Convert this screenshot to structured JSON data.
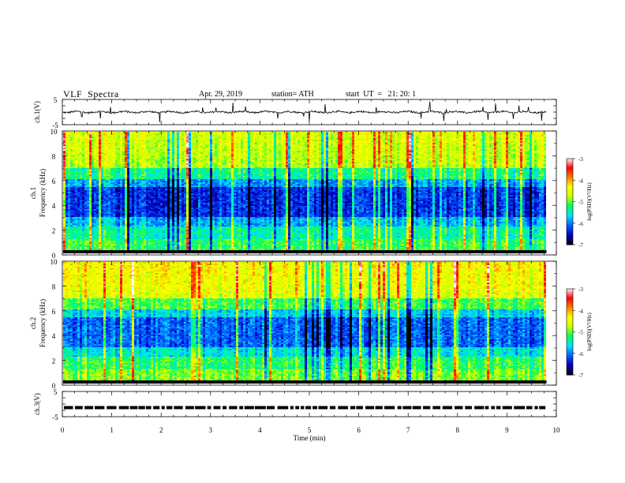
{
  "header": {
    "title": "VLF  Spectra",
    "date": "Apr. 29, 2019",
    "station": "station= ATH",
    "start": "start  UT  =   21: 20: 1"
  },
  "chart_data": [
    {
      "type": "line",
      "panel": "ch1-waveform",
      "ylabel": "ch.1(V)",
      "ylim": [
        -5,
        5
      ],
      "ytick_labels": [
        "5",
        "-5"
      ],
      "trace_color": "#000000",
      "x_extent_min": [
        0,
        9.8
      ]
    },
    {
      "type": "heatmap",
      "panel": "ch1-spectrogram",
      "ylabel": "Frequency (kHz)",
      "channel_label": "ch.1",
      "ylim": [
        0,
        10
      ],
      "ytick_labels": [
        "0",
        "2",
        "4",
        "6",
        "8",
        "10"
      ],
      "x_extent_min": [
        0,
        9.8
      ],
      "colorbar": {
        "label": "log(PSD)(V²/Hz)",
        "range": [
          -7,
          -3
        ],
        "tick_labels": [
          "-3",
          "-4",
          "-5",
          "-6",
          "-7"
        ],
        "colormap": [
          "#000000",
          "#0000c8",
          "#0060ff",
          "#00e0ff",
          "#00ff60",
          "#c8ff00",
          "#ffff00",
          "#ff8000",
          "#ff0000",
          "#ffffff"
        ]
      }
    },
    {
      "type": "heatmap",
      "panel": "ch2-spectrogram",
      "ylabel": "Frequency (kHz)",
      "channel_label": "ch.2",
      "ylim": [
        0,
        10
      ],
      "ytick_labels": [
        "0",
        "2",
        "4",
        "6",
        "8",
        "10"
      ],
      "x_extent_min": [
        0,
        9.8
      ],
      "colorbar": {
        "label": "log(PSD)(V²/Hz)",
        "range": [
          -7,
          -3
        ],
        "tick_labels": [
          "-3",
          "-4",
          "-5",
          "-6",
          "-7"
        ],
        "colormap": [
          "#000000",
          "#0000c8",
          "#0060ff",
          "#00e0ff",
          "#00ff60",
          "#c8ff00",
          "#ffff00",
          "#ff8000",
          "#ff0000",
          "#ffffff"
        ]
      }
    },
    {
      "type": "line",
      "panel": "ch3-waveform",
      "ylabel": "ch.3(V)",
      "ylim": [
        -5,
        5
      ],
      "ytick_labels": [
        "5",
        "-5"
      ],
      "trace_color": "#000000",
      "x_extent_min": [
        0,
        9.8
      ]
    }
  ],
  "xaxis": {
    "label": "Time  (min)",
    "range": [
      0,
      10
    ],
    "tick_labels": [
      "0",
      "1",
      "2",
      "3",
      "4",
      "5",
      "6",
      "7",
      "8",
      "9",
      "10"
    ]
  }
}
